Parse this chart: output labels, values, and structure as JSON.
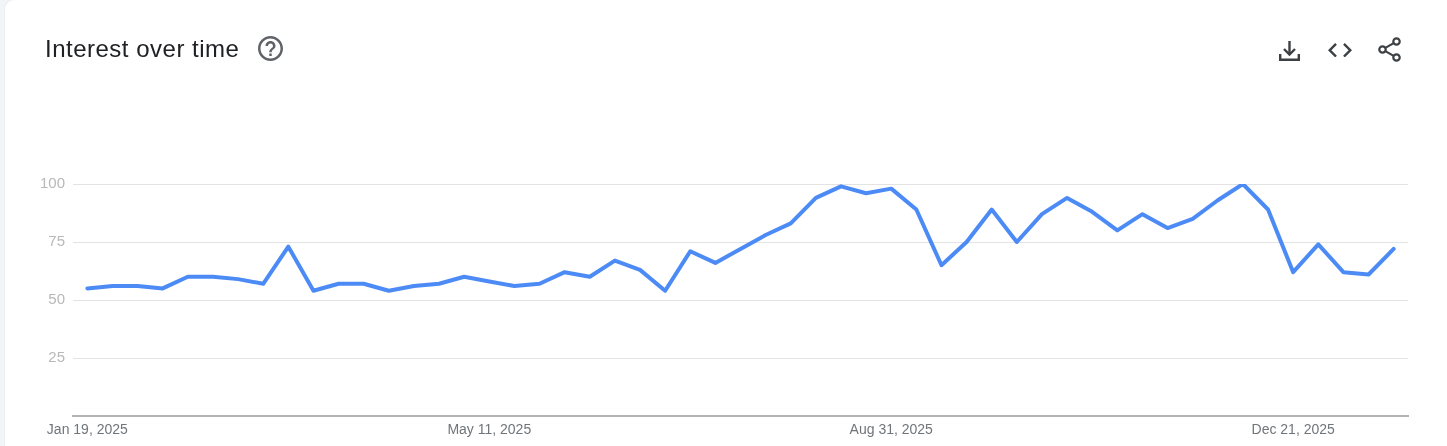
{
  "chart_data": {
    "type": "line",
    "title": "Interest over time",
    "x": [
      "2025-01-19",
      "2025-01-26",
      "2025-02-02",
      "2025-02-09",
      "2025-02-16",
      "2025-02-23",
      "2025-03-02",
      "2025-03-09",
      "2025-03-16",
      "2025-03-23",
      "2025-03-30",
      "2025-04-06",
      "2025-04-13",
      "2025-04-20",
      "2025-04-27",
      "2025-05-04",
      "2025-05-11",
      "2025-05-18",
      "2025-05-25",
      "2025-06-01",
      "2025-06-08",
      "2025-06-15",
      "2025-06-22",
      "2025-06-29",
      "2025-07-06",
      "2025-07-13",
      "2025-07-20",
      "2025-07-27",
      "2025-08-03",
      "2025-08-10",
      "2025-08-17",
      "2025-08-24",
      "2025-08-31",
      "2025-09-07",
      "2025-09-14",
      "2025-09-21",
      "2025-09-28",
      "2025-10-05",
      "2025-10-12",
      "2025-10-19",
      "2025-10-26",
      "2025-11-02",
      "2025-11-09",
      "2025-11-16",
      "2025-11-23",
      "2025-11-30",
      "2025-12-07",
      "2025-12-14",
      "2025-12-21",
      "2025-12-28",
      "2026-01-04",
      "2026-01-11",
      "2026-01-18"
    ],
    "series": [
      {
        "color": "#4c8bf5",
        "values": [
          55,
          56,
          56,
          55,
          60,
          60,
          59,
          57,
          73,
          54,
          57,
          57,
          54,
          56,
          57,
          60,
          58,
          56,
          57,
          62,
          60,
          67,
          63,
          54,
          71,
          66,
          72,
          78,
          83,
          94,
          99,
          96,
          98,
          89,
          65,
          75,
          89,
          75,
          87,
          94,
          88,
          80,
          87,
          81,
          85,
          93,
          100,
          89,
          62,
          74,
          62,
          61,
          72
        ]
      }
    ],
    "xlim": [
      "2025-01-15",
      "2026-01-22"
    ],
    "xticks": [
      {
        "value": "2025-01-19",
        "label": "Jan 19, 2025"
      },
      {
        "value": "2025-05-11",
        "label": "May 11, 2025"
      },
      {
        "value": "2025-08-31",
        "label": "Aug 31, 2025"
      },
      {
        "value": "2025-12-21",
        "label": "Dec 21, 2025"
      }
    ],
    "ylim": [
      0,
      100
    ],
    "yticks": [
      25,
      50,
      75,
      100
    ],
    "grid": "y",
    "marker": "none",
    "line_style": "solid"
  }
}
